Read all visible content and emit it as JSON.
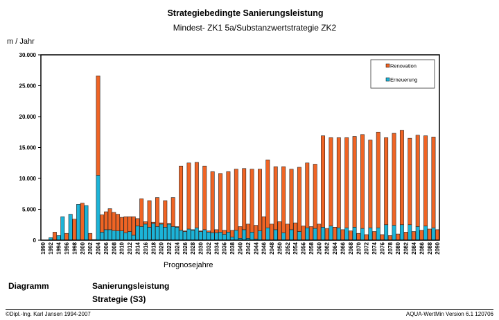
{
  "chart_data": {
    "type": "bar",
    "stacked": true,
    "title": "Strategiebedingte Sanierungsleistung",
    "subtitle": "Mindest- ZK1 5a/Substanzwertstrategie ZK2",
    "ylabel": "m / Jahr",
    "xlabel": "Prognosejahre",
    "ylim": [
      0,
      30000
    ],
    "yticks": [
      0,
      5000,
      10000,
      15000,
      20000,
      25000,
      30000
    ],
    "ytick_labels": [
      "0",
      "5.000",
      "10.000",
      "15.000",
      "20.000",
      "25.000",
      "30.000"
    ],
    "grid": false,
    "legend_position": "top-right",
    "x_label_step": 2,
    "categories": [
      1990,
      1991,
      1992,
      1993,
      1994,
      1995,
      1996,
      1997,
      1998,
      1999,
      2000,
      2001,
      2002,
      2003,
      2004,
      2005,
      2006,
      2007,
      2008,
      2009,
      2010,
      2011,
      2012,
      2013,
      2014,
      2015,
      2016,
      2017,
      2018,
      2019,
      2020,
      2021,
      2022,
      2023,
      2024,
      2025,
      2026,
      2027,
      2028,
      2029,
      2030,
      2031,
      2032,
      2033,
      2034,
      2035,
      2036,
      2037,
      2038,
      2039,
      2040,
      2041,
      2042,
      2043,
      2044,
      2045,
      2046,
      2047,
      2048,
      2049,
      2050,
      2051,
      2052,
      2053,
      2054,
      2055,
      2056,
      2057,
      2058,
      2059,
      2060,
      2061,
      2062,
      2063,
      2064,
      2065,
      2066,
      2067,
      2068,
      2069,
      2070,
      2071,
      2072,
      2073,
      2074,
      2075,
      2076,
      2077,
      2078,
      2079,
      2080,
      2081,
      2082,
      2083,
      2084,
      2085,
      2086,
      2087,
      2088,
      2089,
      2090
    ],
    "series": [
      {
        "name": "Erneuerung",
        "color": "#1CB4D8",
        "values": [
          0,
          0,
          400,
          0,
          750,
          3800,
          0,
          4200,
          0,
          5800,
          0,
          5600,
          0,
          100,
          10500,
          1300,
          1700,
          1700,
          1550,
          1500,
          1500,
          1200,
          1400,
          800,
          2300,
          2200,
          2600,
          2100,
          2700,
          2200,
          2600,
          2100,
          2600,
          2200,
          2100,
          1600,
          1400,
          1800,
          1600,
          2000,
          1400,
          1700,
          1300,
          1200,
          1200,
          1300,
          950,
          1300,
          500,
          1600,
          300,
          1700,
          300,
          1300,
          200,
          1500,
          0,
          2000,
          0,
          1700,
          0,
          1200,
          0,
          1700,
          0,
          1400,
          0,
          2000,
          0,
          1900,
          0,
          2100,
          0,
          2300,
          0,
          2000,
          0,
          2000,
          0,
          2100,
          0,
          1900,
          0,
          2000,
          0,
          2000,
          0,
          2500,
          0,
          2400,
          0,
          2500,
          0,
          2500,
          0,
          2200,
          0,
          2300,
          0,
          2000,
          0
        ]
      },
      {
        "name": "Renovation",
        "color": "#F06424",
        "values": [
          0,
          0,
          0,
          1300,
          0,
          0,
          1100,
          0,
          3400,
          0,
          6000,
          0,
          1100,
          0,
          16100,
          2800,
          2900,
          3400,
          2950,
          2700,
          2200,
          2600,
          2400,
          3000,
          1200,
          4500,
          400,
          4300,
          200,
          4700,
          200,
          4300,
          100,
          4700,
          100,
          10400,
          100,
          10700,
          100,
          10600,
          100,
          10300,
          200,
          9900,
          500,
          9500,
          650,
          9800,
          1100,
          9900,
          1900,
          9900,
          2300,
          10200,
          2200,
          10000,
          3800,
          11000,
          2600,
          10200,
          3000,
          10700,
          2600,
          9800,
          2800,
          10400,
          2300,
          10500,
          2200,
          10400,
          2600,
          14800,
          1900,
          14300,
          2100,
          14600,
          1700,
          14600,
          1500,
          14700,
          1100,
          15200,
          900,
          14200,
          1400,
          15500,
          900,
          14100,
          750,
          14900,
          1000,
          15300,
          1300,
          14000,
          1400,
          14800,
          1600,
          14600,
          1800,
          14700,
          1700
        ]
      }
    ],
    "legend": [
      "Renovation",
      "Erneuerung"
    ]
  },
  "info": {
    "label": "Diagramm",
    "value1": "Sanierungsleistung",
    "value2": "Strategie (S3)"
  },
  "footer": {
    "copyright": "©Dipl.-Ing. Karl Jansen 1994-2007",
    "version": "AQUA-WertMin Version 6.1 120706"
  }
}
